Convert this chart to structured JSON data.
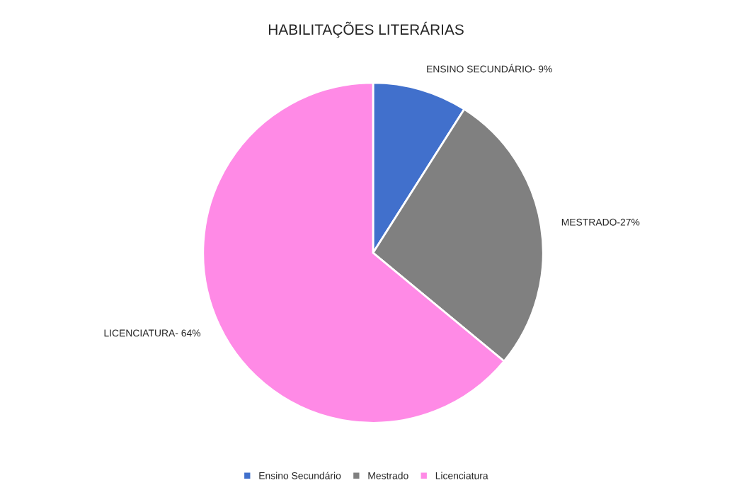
{
  "chart_data": {
    "type": "pie",
    "title": "HABILITAÇÕES LITERÁRIAS",
    "categories": [
      "Ensino Secundário",
      "Mestrado",
      "Licenciatura"
    ],
    "values": [
      9,
      27,
      64
    ],
    "colors": [
      "#4170cc",
      "#808080",
      "#ff8ae6"
    ],
    "value_labels": [
      "ENSINO SECUNDÁRIO- 9%",
      "MESTRADO-27%",
      "LICENCIATURA- 64%"
    ],
    "legend": "bottom"
  }
}
